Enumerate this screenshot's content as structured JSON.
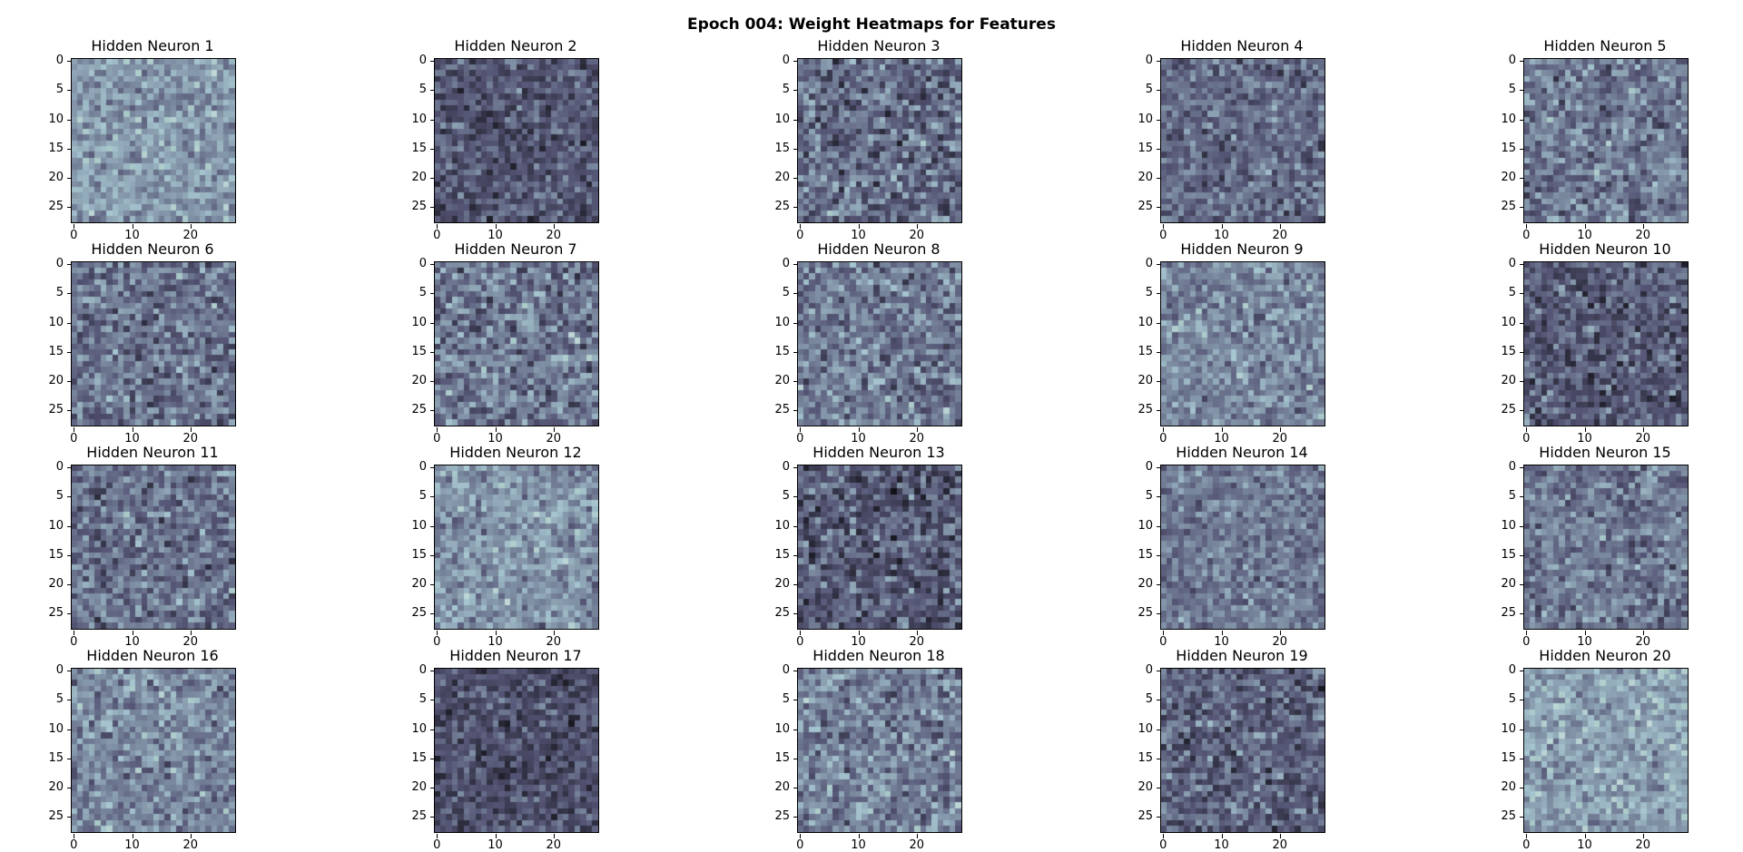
{
  "figure": {
    "title": "Epoch 004: Weight Heatmaps for Features"
  },
  "chart_data": {
    "type": "heatmap",
    "grid": {
      "rows": 4,
      "cols": 5
    },
    "matrix_size": [
      28,
      28
    ],
    "colormap": "bone",
    "colors": {
      "low": "#1a1a26",
      "mid": "#5a5f78",
      "high": "#c8dcd8",
      "max": "#ffffff"
    },
    "yticks": [
      0,
      5,
      10,
      15,
      20,
      25
    ],
    "xticks": [
      0,
      10,
      20
    ],
    "panels": [
      {
        "title": "Hidden Neuron 1",
        "mean": 0.6,
        "spread": 0.16
      },
      {
        "title": "Hidden Neuron 2",
        "mean": 0.38,
        "spread": 0.18
      },
      {
        "title": "Hidden Neuron 3",
        "mean": 0.45,
        "spread": 0.22
      },
      {
        "title": "Hidden Neuron 4",
        "mean": 0.45,
        "spread": 0.18
      },
      {
        "title": "Hidden Neuron 5",
        "mean": 0.5,
        "spread": 0.2
      },
      {
        "title": "Hidden Neuron 6",
        "mean": 0.48,
        "spread": 0.2
      },
      {
        "title": "Hidden Neuron 7",
        "mean": 0.5,
        "spread": 0.22
      },
      {
        "title": "Hidden Neuron 8",
        "mean": 0.5,
        "spread": 0.2
      },
      {
        "title": "Hidden Neuron 9",
        "mean": 0.55,
        "spread": 0.18
      },
      {
        "title": "Hidden Neuron 10",
        "mean": 0.4,
        "spread": 0.2
      },
      {
        "title": "Hidden Neuron 11",
        "mean": 0.48,
        "spread": 0.2
      },
      {
        "title": "Hidden Neuron 12",
        "mean": 0.58,
        "spread": 0.18
      },
      {
        "title": "Hidden Neuron 13",
        "mean": 0.4,
        "spread": 0.22
      },
      {
        "title": "Hidden Neuron 14",
        "mean": 0.5,
        "spread": 0.16
      },
      {
        "title": "Hidden Neuron 15",
        "mean": 0.5,
        "spread": 0.18
      },
      {
        "title": "Hidden Neuron 16",
        "mean": 0.55,
        "spread": 0.18
      },
      {
        "title": "Hidden Neuron 17",
        "mean": 0.35,
        "spread": 0.16
      },
      {
        "title": "Hidden Neuron 18",
        "mean": 0.52,
        "spread": 0.2
      },
      {
        "title": "Hidden Neuron 19",
        "mean": 0.42,
        "spread": 0.2
      },
      {
        "title": "Hidden Neuron 20",
        "mean": 0.62,
        "spread": 0.16
      }
    ]
  }
}
